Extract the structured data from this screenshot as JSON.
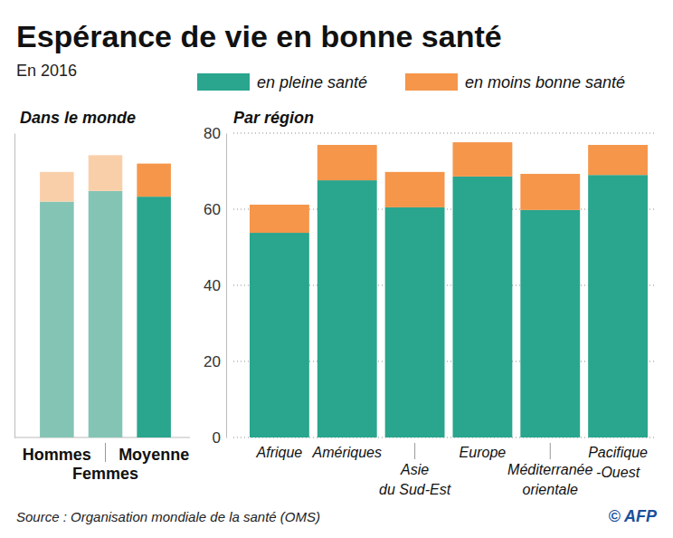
{
  "title": "Espérance de vie en bonne santé",
  "subtitle": "En 2016",
  "source": "Source : Organisation mondiale de la santé (OMS)",
  "credit": "© AFP",
  "chart_data": [
    {
      "type": "bar",
      "title": "Dans le monde",
      "categories": [
        "Hommes",
        "Femmes",
        "Moyenne"
      ],
      "stacked": true,
      "ylim": [
        0,
        80
      ],
      "tick_labels": "x",
      "series": [
        {
          "colors": [
            "#84c4b5",
            "#84c4b5",
            "#2aa58e"
          ],
          "values": [
            62.0,
            64.8,
            63.3
          ]
        },
        {
          "colors": [
            "#f9cfaa",
            "#f9cfaa",
            "#f5964b"
          ],
          "values": [
            7.8,
            9.4,
            8.7
          ]
        }
      ]
    },
    {
      "type": "bar",
      "title": "Par région",
      "categories": [
        "Afrique",
        "Amériques",
        "Asie du Sud-Est",
        "Europe",
        "Méditerranée orientale",
        "Pacifique-Ouest"
      ],
      "stacked": true,
      "ylim": [
        0,
        80
      ],
      "yticks": [
        0,
        20,
        40,
        60,
        80
      ],
      "grid": true,
      "legend": "top",
      "series": [
        {
          "name": "en pleine santé",
          "color": "#2aa58e",
          "values": [
            53.8,
            67.6,
            60.5,
            68.6,
            59.8,
            69.0
          ]
        },
        {
          "name": "en moins bonne santé",
          "color": "#f5964b",
          "values": [
            7.4,
            9.3,
            9.3,
            9.0,
            9.5,
            7.9
          ]
        }
      ]
    }
  ]
}
